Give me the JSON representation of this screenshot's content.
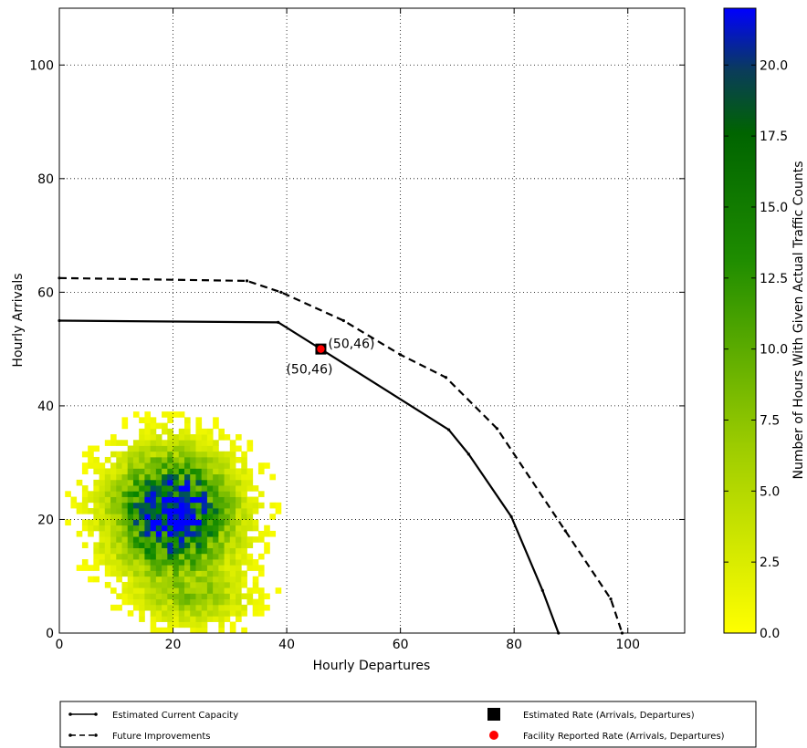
{
  "chart_data": {
    "type": "heatmap",
    "xlabel": "Hourly Departures",
    "ylabel": "Hourly Arrivals",
    "xlim": [
      0,
      110
    ],
    "ylim": [
      0,
      110
    ],
    "xticks": [
      "0",
      "20",
      "40",
      "60",
      "80",
      "100"
    ],
    "yticks": [
      "0",
      "20",
      "40",
      "60",
      "80",
      "100"
    ],
    "grid": true,
    "colorbar": {
      "label": "Number of Hours With Given Actual Traffic Counts",
      "range": [
        0.0,
        22.0
      ],
      "ticks": [
        "0.0",
        "2.5",
        "5.0",
        "7.5",
        "10.0",
        "12.5",
        "15.0",
        "17.5",
        "20.0"
      ],
      "colors": [
        "#ffff00",
        "#80c000",
        "#008000",
        "#0000ff"
      ]
    },
    "heatmap_clusters": [
      {
        "cx": 20,
        "cy": 21,
        "sx": 6.5,
        "sy": 6.5,
        "peak": 22
      },
      {
        "cx": 24,
        "cy": 6,
        "sx": 6.0,
        "sy": 3.0,
        "peak": 5
      }
    ],
    "series": [
      {
        "name": "Estimated Current Capacity",
        "style": "solid",
        "color": "#000000",
        "x": [
          0,
          38.5,
          46,
          68.5,
          72,
          79.5,
          85,
          87.8
        ],
        "y": [
          55,
          54.7,
          50,
          35.8,
          31.5,
          20.5,
          7.5,
          0
        ]
      },
      {
        "name": "Future Improvements",
        "style": "dashed",
        "color": "#000000",
        "x": [
          0,
          33,
          39,
          50,
          60,
          68,
          77,
          89,
          97,
          99
        ],
        "y": [
          62.5,
          62,
          60,
          55,
          49,
          45,
          36,
          18,
          6,
          0
        ]
      }
    ],
    "points": [
      {
        "name": "Estimated Rate (Arrivals, Departures)",
        "marker": "square",
        "color": "#000000",
        "x": 46,
        "y": 50,
        "label": "(50,46)",
        "label_pos": "right"
      },
      {
        "name": "Facility Reported Rate (Arrivals, Departures)",
        "marker": "circle",
        "color": "#ff0000",
        "x": 46,
        "y": 50,
        "label": "(50,46)",
        "label_pos": "below"
      }
    ],
    "legend": {
      "placement": "bottom",
      "entries": [
        {
          "label": "Estimated Current Capacity",
          "marker": "solid-line"
        },
        {
          "label": "Future Improvements",
          "marker": "dashed-line"
        },
        {
          "label": "Estimated Rate (Arrivals, Departures)",
          "marker": "black-square"
        },
        {
          "label": "Facility Reported Rate (Arrivals, Departures)",
          "marker": "red-dot"
        }
      ]
    }
  }
}
